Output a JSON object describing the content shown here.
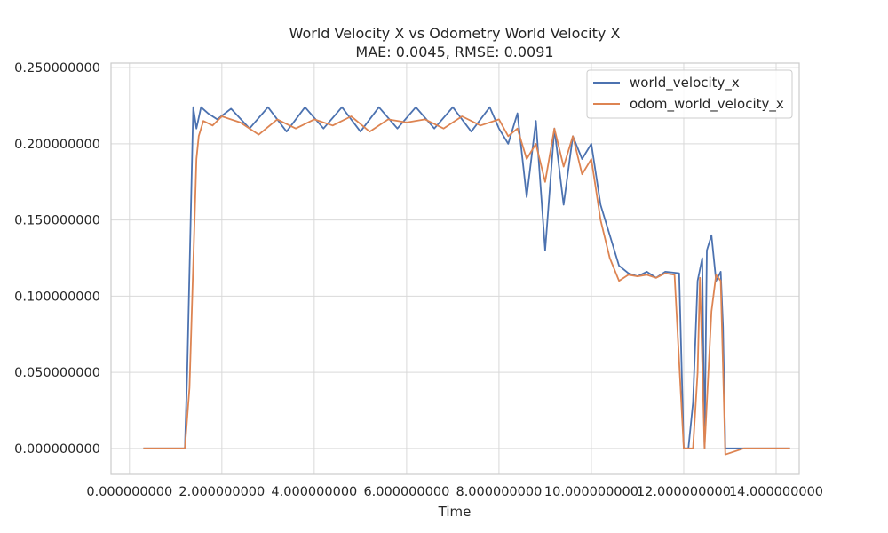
{
  "chart_data": {
    "type": "line",
    "title": "World Velocity X vs Odometry World Velocity X",
    "subtitle": "MAE: 0.0045, RMSE: 0.0091",
    "xlabel": "Time",
    "ylabel": "",
    "xlim": [
      -0.4,
      14.5
    ],
    "ylim": [
      -0.017,
      0.253
    ],
    "xticks": [
      0,
      2,
      4,
      6,
      8,
      10,
      12,
      14
    ],
    "xtick_labels": [
      "0.000000000",
      "2.000000000",
      "4.000000000",
      "6.000000000",
      "8.000000000",
      "10.000000000",
      "12.000000000",
      "14.000000000"
    ],
    "yticks": [
      0,
      0.05,
      0.1,
      0.15,
      0.2,
      0.25
    ],
    "ytick_labels": [
      "0.000000000",
      "0.050000000",
      "0.100000000",
      "0.150000000",
      "0.200000000",
      "0.250000000"
    ],
    "grid": true,
    "legend_position": "top-right",
    "series": [
      {
        "name": "world_velocity_x",
        "color": "#4c72b0",
        "x": [
          0.3,
          1.2,
          1.25,
          1.38,
          1.45,
          1.55,
          1.7,
          1.9,
          2.2,
          2.6,
          3.0,
          3.4,
          3.8,
          4.2,
          4.6,
          5.0,
          5.4,
          5.8,
          6.2,
          6.6,
          7.0,
          7.4,
          7.8,
          8.0,
          8.2,
          8.4,
          8.6,
          8.8,
          9.0,
          9.2,
          9.4,
          9.6,
          9.8,
          10.0,
          10.2,
          10.4,
          10.6,
          10.8,
          11.0,
          11.2,
          11.4,
          11.6,
          11.9,
          12.0,
          12.1,
          12.2,
          12.3,
          12.4,
          12.45,
          12.5,
          12.6,
          12.7,
          12.8,
          12.85,
          12.9,
          13.2,
          13.6,
          14.0,
          14.3
        ],
        "y": [
          0.0,
          0.0,
          0.05,
          0.224,
          0.21,
          0.224,
          0.22,
          0.216,
          0.223,
          0.21,
          0.224,
          0.208,
          0.224,
          0.21,
          0.224,
          0.208,
          0.224,
          0.21,
          0.224,
          0.21,
          0.224,
          0.208,
          0.224,
          0.21,
          0.2,
          0.22,
          0.165,
          0.215,
          0.13,
          0.21,
          0.16,
          0.205,
          0.19,
          0.2,
          0.16,
          0.14,
          0.12,
          0.115,
          0.113,
          0.116,
          0.112,
          0.116,
          0.115,
          0.0,
          0.0,
          0.03,
          0.11,
          0.125,
          0.0,
          0.13,
          0.14,
          0.11,
          0.116,
          0.08,
          0.0,
          0.0,
          0.0,
          0.0,
          0.0
        ]
      },
      {
        "name": "odom_world_velocity_x",
        "color": "#dd8452",
        "x": [
          0.3,
          1.2,
          1.3,
          1.45,
          1.5,
          1.6,
          1.8,
          2.0,
          2.4,
          2.8,
          3.2,
          3.6,
          4.0,
          4.4,
          4.8,
          5.2,
          5.6,
          6.0,
          6.4,
          6.8,
          7.2,
          7.6,
          8.0,
          8.2,
          8.4,
          8.6,
          8.8,
          9.0,
          9.2,
          9.4,
          9.6,
          9.8,
          10.0,
          10.2,
          10.4,
          10.6,
          10.8,
          11.0,
          11.2,
          11.4,
          11.6,
          11.8,
          12.0,
          12.2,
          12.3,
          12.35,
          12.45,
          12.6,
          12.7,
          12.8,
          12.9,
          13.3,
          13.8,
          14.3
        ],
        "y": [
          0.0,
          0.0,
          0.04,
          0.19,
          0.205,
          0.215,
          0.212,
          0.218,
          0.214,
          0.206,
          0.216,
          0.21,
          0.216,
          0.212,
          0.218,
          0.208,
          0.216,
          0.214,
          0.216,
          0.21,
          0.218,
          0.212,
          0.216,
          0.205,
          0.21,
          0.19,
          0.2,
          0.175,
          0.21,
          0.185,
          0.205,
          0.18,
          0.19,
          0.15,
          0.125,
          0.11,
          0.114,
          0.113,
          0.114,
          0.112,
          0.115,
          0.114,
          0.0,
          0.0,
          0.05,
          0.112,
          0.0,
          0.09,
          0.114,
          0.11,
          -0.004,
          0.0,
          0.0,
          0.0
        ]
      }
    ]
  }
}
